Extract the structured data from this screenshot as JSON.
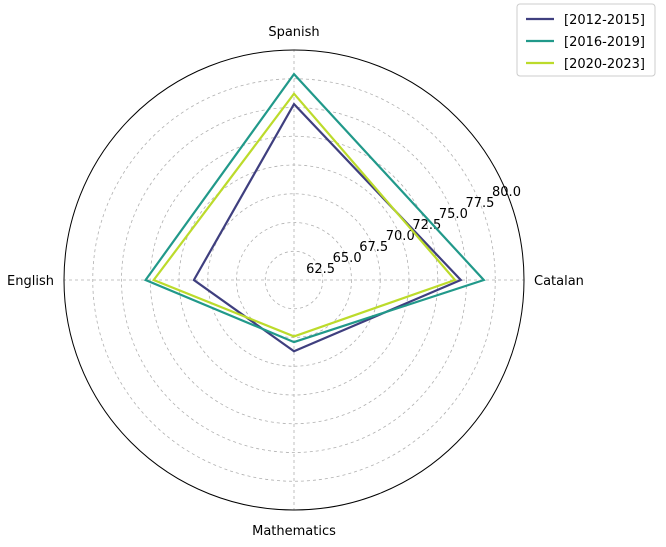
{
  "chart_data": {
    "type": "radar",
    "title": "",
    "categories": [
      "Catalan",
      "Spanish",
      "English",
      "Mathematics"
    ],
    "r_ticks": [
      62.5,
      65.0,
      67.5,
      70.0,
      72.5,
      75.0,
      77.5,
      80.0
    ],
    "r_tick_labels": [
      "62.5",
      "65.0",
      "67.5",
      "70.0",
      "72.5",
      "75.0",
      "77.5",
      "80.0"
    ],
    "rlim": [
      60,
      80
    ],
    "grid": true,
    "legend_position": "top-right",
    "series": [
      {
        "name": "[2012-2015]",
        "color": "#3f3f7f",
        "values": [
          74.5,
          75.3,
          68.7,
          66.2
        ]
      },
      {
        "name": "[2016-2019]",
        "color": "#21998a",
        "values": [
          76.5,
          77.9,
          72.9,
          65.4
        ]
      },
      {
        "name": "[2020-2023]",
        "color": "#bcdb2b",
        "values": [
          74.0,
          76.2,
          72.2,
          64.9
        ]
      }
    ]
  }
}
